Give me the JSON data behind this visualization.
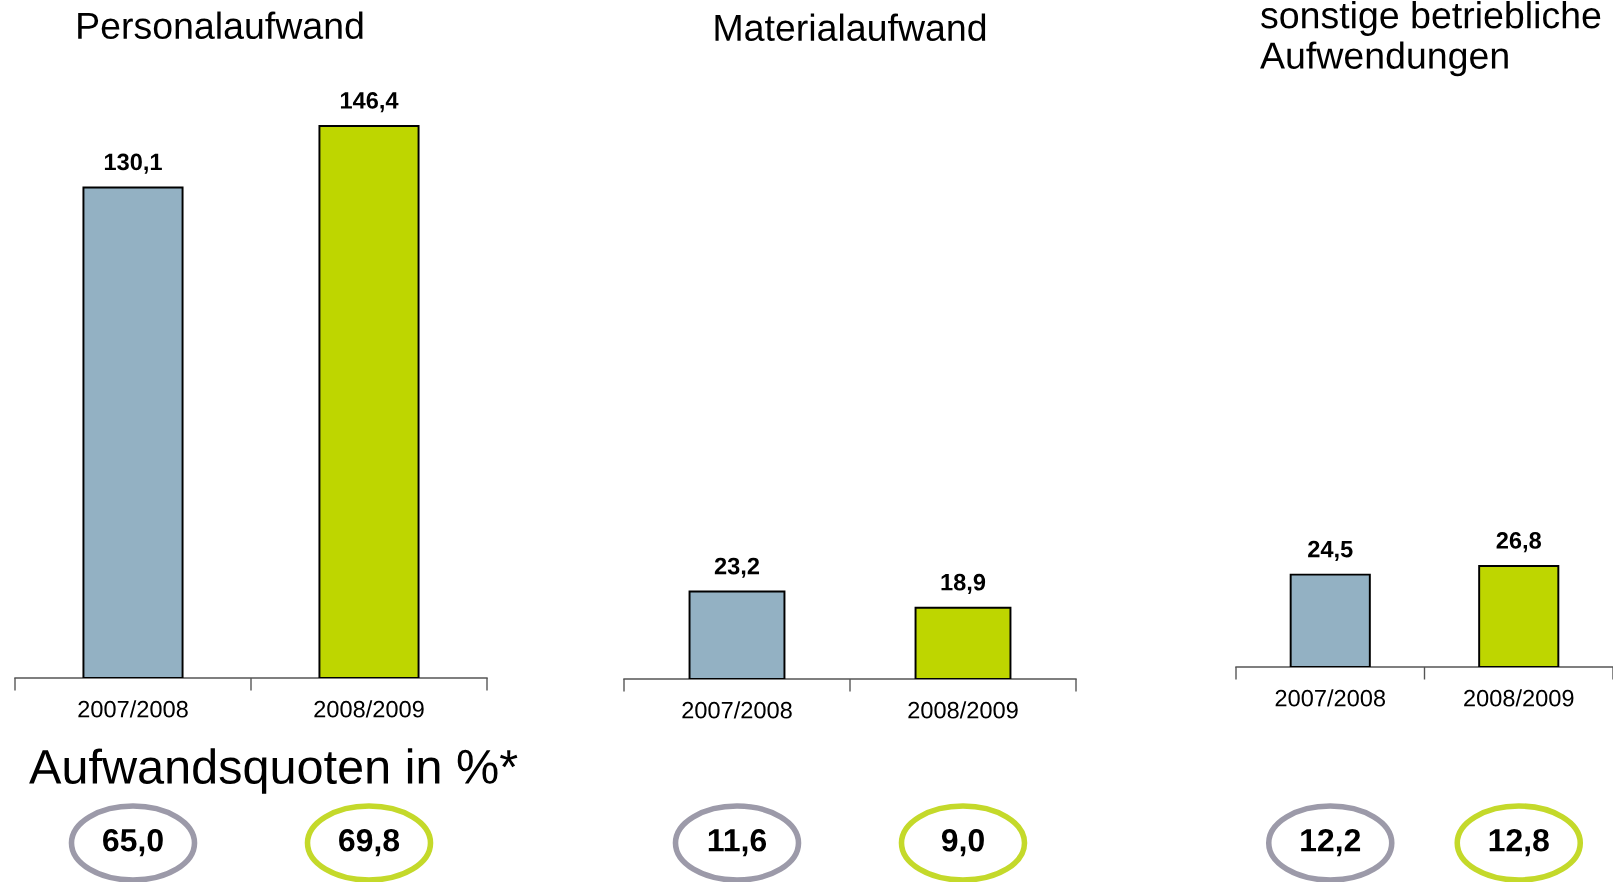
{
  "chart_data": [
    {
      "type": "bar",
      "title": "Personalaufwand",
      "categories": [
        "2007/2008",
        "2008/2009"
      ],
      "values": [
        130.1,
        146.4
      ],
      "colors": [
        "#93b1c3",
        "#bed600"
      ],
      "value_labels": [
        "130,1",
        "146,4"
      ],
      "tick_labels": "x"
    },
    {
      "type": "bar",
      "title": "Materialaufwand",
      "categories": [
        "2007/2008",
        "2008/2009"
      ],
      "values": [
        23.2,
        18.9
      ],
      "colors": [
        "#93b1c3",
        "#bed600"
      ],
      "value_labels": [
        "23,2",
        "18,9"
      ],
      "tick_labels": "x"
    },
    {
      "type": "bar",
      "title": "sonstige betriebliche Aufwendungen",
      "categories": [
        "2007/2008",
        "2008/2009"
      ],
      "values": [
        24.5,
        26.8
      ],
      "colors": [
        "#93b1c3",
        "#bed600"
      ],
      "value_labels": [
        "24,5",
        "26,8"
      ],
      "tick_labels": "x"
    },
    {
      "type": "other",
      "title": "Aufwandsquoten in %*",
      "values": [
        65.0,
        69.8,
        11.6,
        9.0,
        12.2,
        12.8
      ],
      "value_labels": [
        "65,0",
        "69,8",
        "11,6",
        "9,0",
        "12,2",
        "12,8"
      ],
      "colors": [
        "#9c9aa9",
        "#c4d92a",
        "#9c9aa9",
        "#c4d92a",
        "#9c9aa9",
        "#c4d92a"
      ]
    }
  ]
}
